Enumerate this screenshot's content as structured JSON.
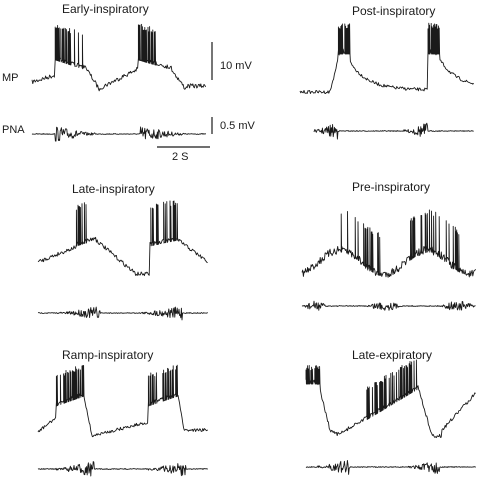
{
  "figure": {
    "row_labels": {
      "mp": "MP",
      "pna": "PNA"
    },
    "scale_bars": {
      "voltage_mp": "10 mV",
      "voltage_pna": "0.5 mV",
      "time": "2 S"
    },
    "panels": [
      {
        "id": "early-inspiratory",
        "title": "Early-inspiratory"
      },
      {
        "id": "post-inspiratory",
        "title": "Post-inspiratory"
      },
      {
        "id": "late-inspiratory",
        "title": "Late-inspiratory"
      },
      {
        "id": "pre-inspiratory",
        "title": "Pre-inspiratory"
      },
      {
        "id": "ramp-inspiratory",
        "title": "Ramp-inspiratory"
      },
      {
        "id": "late-expiratory",
        "title": "Late-expiratory"
      }
    ]
  }
}
